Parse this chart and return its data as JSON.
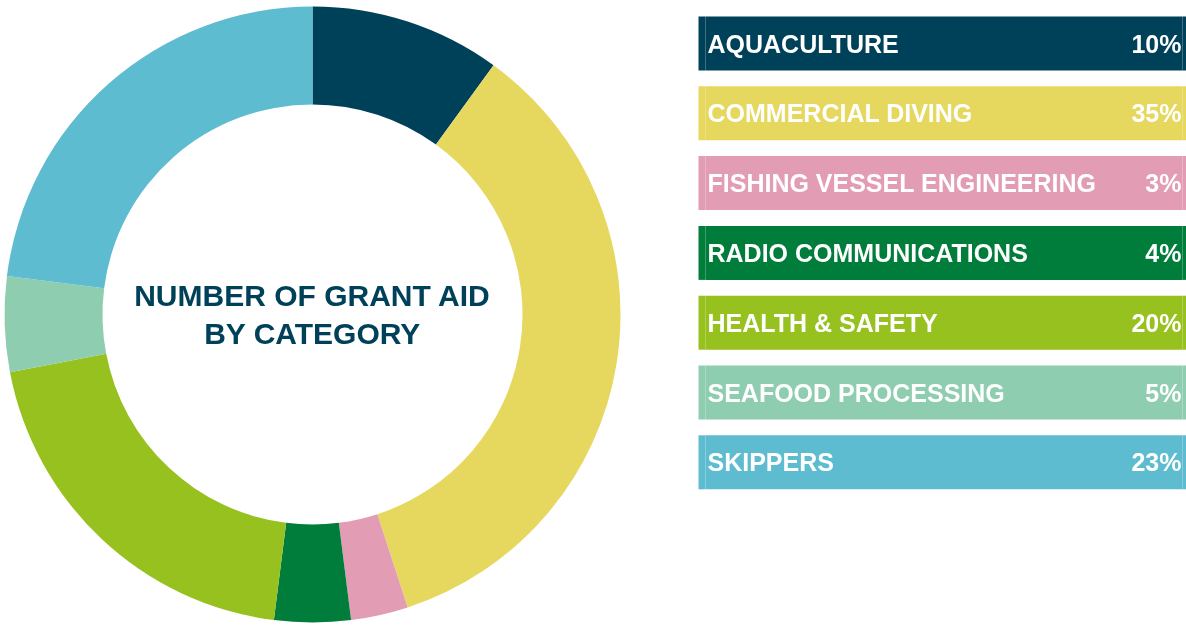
{
  "chart_data": {
    "type": "donut",
    "title": "NUMBER OF GRANT AID\nBY CATEGORY",
    "categories": [
      "AQUACULTURE",
      "COMMERCIAL DIVING",
      "FISHING VESSEL ENGINEERING",
      "RADIO COMMUNICATIONS",
      "HEALTH & SAFETY",
      "SEAFOOD PROCESSING",
      "SKIPPERS"
    ],
    "values": [
      10,
      35,
      3,
      4,
      20,
      5,
      23
    ],
    "value_labels": [
      "10%",
      "35%",
      "3%",
      "4%",
      "20%",
      "5%",
      "23%"
    ],
    "colors": [
      "#00415a",
      "#e6d85e",
      "#e29db5",
      "#007d3a",
      "#97c11f",
      "#8ecdb0",
      "#5ebcd1"
    ],
    "legend": "right"
  }
}
